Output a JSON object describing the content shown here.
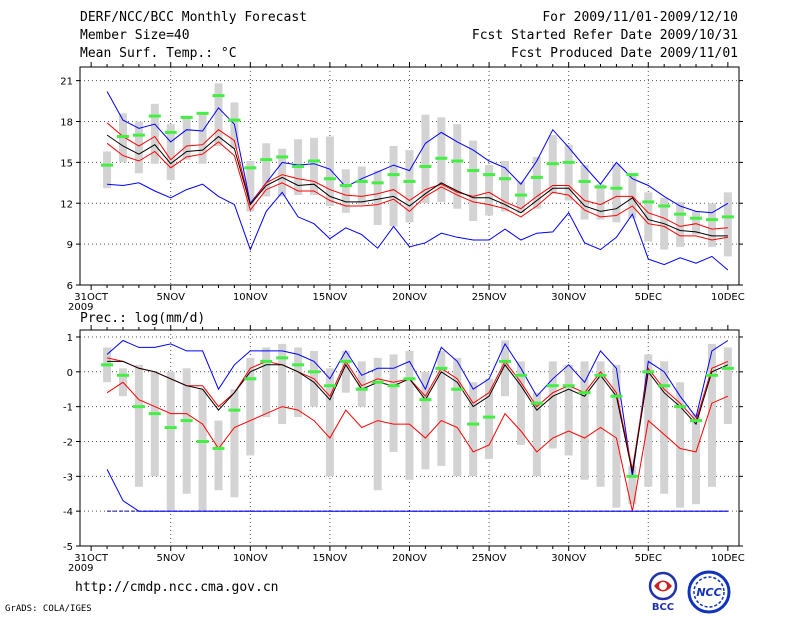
{
  "header": {
    "title": "DERF/NCC/BCC Monthly Forecast",
    "member_size": "Member Size=40",
    "variable": "Mean Surf. Temp.: °C",
    "period": "For 2009/11/01-2009/12/10",
    "started": "Fcst Started Refer Date 2009/10/31",
    "produced": "Fcst Produced Date 2009/11/01"
  },
  "footer": {
    "url": "http://cmdp.ncc.cma.gov.cn",
    "grads": "GrADS: COLA/IGES",
    "bcc_logo_text": "BCC",
    "ncc_logo_text": "NCC"
  },
  "colors": {
    "max": "#0000ff",
    "min": "#0000ff",
    "upper": "#ff0000",
    "lower": "#ff0000",
    "mean": "#000000",
    "box": "#d3d3d3",
    "median": "#44ee44",
    "zero_line": "#0000aa",
    "bcc_logo": "#2233aa",
    "ncc_logo": "#1133bb"
  },
  "chart_data": [
    {
      "type": "line",
      "title": "Mean Surf. Temp.: °C",
      "x_tick_labels": [
        "31OCT",
        "5NOV",
        "10NOV",
        "15NOV",
        "20NOV",
        "25NOV",
        "30NOV",
        "5DEC",
        "10DEC"
      ],
      "x_tick_days": [
        0,
        5,
        10,
        15,
        20,
        25,
        30,
        35,
        40
      ],
      "x_year_label": "2009",
      "xlim": [
        -0.7,
        40.7
      ],
      "ylim": [
        6,
        22
      ],
      "y_ticks": [
        6,
        9,
        12,
        15,
        18,
        21
      ],
      "days": [
        1,
        2,
        3,
        4,
        5,
        6,
        7,
        8,
        9,
        10,
        11,
        12,
        13,
        14,
        15,
        16,
        17,
        18,
        19,
        20,
        21,
        22,
        23,
        24,
        25,
        26,
        27,
        28,
        29,
        30,
        31,
        32,
        33,
        34,
        35,
        36,
        37,
        38,
        39,
        40
      ],
      "series": [
        {
          "name": "max",
          "values": [
            20.2,
            18.1,
            17.5,
            17.8,
            16.5,
            17.4,
            17.3,
            19.0,
            17.8,
            12.0,
            13.5,
            15.0,
            14.8,
            14.9,
            14.5,
            13.2,
            13.8,
            14.3,
            14.8,
            14.4,
            16.4,
            17.2,
            16.5,
            15.9,
            15.1,
            14.6,
            13.4,
            15.1,
            17.4,
            16.1,
            14.7,
            13.4,
            15.0,
            13.8,
            13.3,
            12.5,
            11.8,
            11.4,
            11.3,
            12.0
          ]
        },
        {
          "name": "upper",
          "values": [
            17.9,
            16.9,
            16.2,
            16.9,
            15.2,
            16.2,
            16.3,
            17.4,
            16.6,
            11.9,
            13.5,
            14.1,
            13.8,
            13.6,
            13.0,
            12.6,
            12.5,
            12.7,
            13.0,
            12.2,
            13.0,
            13.4,
            12.8,
            12.5,
            12.8,
            12.1,
            11.6,
            12.5,
            13.3,
            13.3,
            12.2,
            11.9,
            12.5,
            12.5,
            11.3,
            10.9,
            10.3,
            10.5,
            10.1,
            10.2
          ]
        },
        {
          "name": "mean",
          "values": [
            17.0,
            16.2,
            15.6,
            16.3,
            14.9,
            15.8,
            15.9,
            16.9,
            16.0,
            11.9,
            13.3,
            13.9,
            13.3,
            13.4,
            12.5,
            12.1,
            12.1,
            12.3,
            12.5,
            11.8,
            12.7,
            13.5,
            12.9,
            12.4,
            12.4,
            11.9,
            11.3,
            12.2,
            13.1,
            13.1,
            11.8,
            11.4,
            11.6,
            12.4,
            10.8,
            10.5,
            10.0,
            9.9,
            9.6,
            9.6
          ]
        },
        {
          "name": "lower",
          "values": [
            16.4,
            15.5,
            15.1,
            15.8,
            14.6,
            15.4,
            15.6,
            16.5,
            15.5,
            11.5,
            13.0,
            13.5,
            12.9,
            12.9,
            12.2,
            11.8,
            11.8,
            11.9,
            12.3,
            11.4,
            12.5,
            13.2,
            12.6,
            12.1,
            11.9,
            11.6,
            11.0,
            11.8,
            12.8,
            12.6,
            11.5,
            11.0,
            11.1,
            11.8,
            10.5,
            10.3,
            9.6,
            9.6,
            9.3,
            9.5
          ]
        },
        {
          "name": "min",
          "values": [
            13.4,
            13.3,
            13.5,
            12.9,
            12.4,
            13.0,
            13.4,
            12.5,
            11.9,
            8.6,
            11.4,
            12.8,
            11.0,
            10.5,
            9.4,
            10.2,
            9.7,
            8.7,
            10.3,
            8.8,
            9.1,
            9.8,
            9.5,
            9.3,
            9.3,
            10.1,
            9.3,
            9.8,
            9.9,
            11.3,
            9.1,
            8.6,
            9.5,
            11.2,
            7.9,
            7.5,
            8.0,
            7.6,
            8.1,
            7.1
          ]
        }
      ],
      "box_series": {
        "q_low": [
          13.1,
          15.0,
          14.2,
          14.9,
          13.7,
          15.2,
          14.9,
          16.2,
          16.0,
          11.4,
          12.5,
          12.5,
          12.6,
          12.6,
          11.8,
          11.3,
          11.9,
          10.4,
          10.3,
          10.6,
          12.0,
          12.1,
          11.6,
          10.7,
          11.1,
          11.4,
          11.3,
          11.6,
          12.7,
          12.2,
          10.8,
          10.8,
          10.6,
          10.9,
          9.2,
          8.6,
          8.8,
          9.7,
          8.8,
          8.1
        ],
        "q_high": [
          15.8,
          18.6,
          18.0,
          19.3,
          17.8,
          18.3,
          18.6,
          20.8,
          19.4,
          15.1,
          16.4,
          16.0,
          16.7,
          16.8,
          16.9,
          14.5,
          14.7,
          14.4,
          16.2,
          15.9,
          18.5,
          18.3,
          17.8,
          16.6,
          14.8,
          15.1,
          13.6,
          15.4,
          17.0,
          16.3,
          14.8,
          13.4,
          14.9,
          14.1,
          12.8,
          12.4,
          12.1,
          11.4,
          12.0,
          12.8
        ],
        "median": [
          14.8,
          16.9,
          17.0,
          18.4,
          17.2,
          18.3,
          18.6,
          19.9,
          18.1,
          14.6,
          15.2,
          15.4,
          14.7,
          15.1,
          13.8,
          13.3,
          13.6,
          13.5,
          14.1,
          13.6,
          14.7,
          15.3,
          15.1,
          14.4,
          14.1,
          13.8,
          12.6,
          13.9,
          14.9,
          15.0,
          13.6,
          13.2,
          13.1,
          14.1,
          12.1,
          11.8,
          11.2,
          10.9,
          10.8,
          11.0
        ]
      }
    },
    {
      "type": "line",
      "title": "Prec.: log(mm/d)",
      "x_tick_labels": [
        "31OCT",
        "5NOV",
        "10NOV",
        "15NOV",
        "20NOV",
        "25NOV",
        "30NOV",
        "5DEC",
        "10DEC"
      ],
      "x_tick_days": [
        0,
        5,
        10,
        15,
        20,
        25,
        30,
        35,
        40
      ],
      "x_year_label": "2009",
      "xlim": [
        -0.7,
        40.7
      ],
      "ylim": [
        -5,
        1.2
      ],
      "y_ticks": [
        -5,
        -4,
        -3,
        -2,
        -1,
        0,
        1
      ],
      "zero_line": -4,
      "days": [
        1,
        2,
        3,
        4,
        5,
        6,
        7,
        8,
        9,
        10,
        11,
        12,
        13,
        14,
        15,
        16,
        17,
        18,
        19,
        20,
        21,
        22,
        23,
        24,
        25,
        26,
        27,
        28,
        29,
        30,
        31,
        32,
        33,
        34,
        35,
        36,
        37,
        38,
        39,
        40
      ],
      "series": [
        {
          "name": "max",
          "values": [
            0.5,
            0.9,
            0.7,
            0.7,
            0.8,
            0.6,
            0.6,
            -0.5,
            0.2,
            0.6,
            0.6,
            0.6,
            0.5,
            0.3,
            -0.2,
            0.6,
            -0.1,
            0.1,
            0.1,
            0.3,
            -0.5,
            0.7,
            0.3,
            -0.5,
            -0.2,
            0.8,
            0.1,
            -0.7,
            -0.2,
            0.2,
            -0.3,
            0.6,
            0.1,
            -3.0,
            0.3,
            0.0,
            -0.7,
            -1.3,
            0.6,
            0.9
          ]
        },
        {
          "name": "upper",
          "values": [
            0.4,
            0.3,
            0.1,
            0.0,
            -0.2,
            -0.4,
            -0.4,
            -1.0,
            -0.6,
            0.1,
            0.3,
            0.2,
            0.0,
            -0.2,
            -0.7,
            0.3,
            -0.4,
            -0.2,
            -0.3,
            -0.2,
            -0.7,
            0.1,
            -0.2,
            -0.9,
            -0.6,
            0.3,
            -0.3,
            -1.0,
            -0.6,
            -0.4,
            -0.6,
            0.0,
            -0.6,
            -2.8,
            0.1,
            -0.5,
            -0.9,
            -1.4,
            0.1,
            0.3
          ]
        },
        {
          "name": "mean",
          "values": [
            0.3,
            0.3,
            0.1,
            0.0,
            -0.2,
            -0.4,
            -0.5,
            -1.1,
            -0.6,
            0.0,
            0.2,
            0.2,
            0.0,
            -0.3,
            -0.8,
            0.2,
            -0.5,
            -0.3,
            -0.4,
            -0.2,
            -0.8,
            0.0,
            -0.3,
            -1.0,
            -0.7,
            0.2,
            -0.4,
            -1.1,
            -0.7,
            -0.5,
            -0.7,
            -0.1,
            -0.7,
            -2.9,
            0.0,
            -0.6,
            -1.0,
            -1.5,
            0.0,
            0.2
          ]
        },
        {
          "name": "lower",
          "values": [
            -0.6,
            -0.3,
            -0.8,
            -1.0,
            -1.2,
            -1.2,
            -1.5,
            -2.2,
            -1.6,
            -1.4,
            -1.2,
            -1.0,
            -1.1,
            -1.4,
            -1.9,
            -1.1,
            -1.6,
            -1.4,
            -1.5,
            -1.5,
            -1.9,
            -1.4,
            -1.6,
            -2.3,
            -2.1,
            -1.2,
            -1.7,
            -2.3,
            -1.9,
            -1.7,
            -1.9,
            -1.6,
            -1.9,
            -4.0,
            -1.4,
            -1.8,
            -2.2,
            -2.3,
            -0.9,
            -0.7
          ]
        },
        {
          "name": "min",
          "values": [
            -2.8,
            -3.7,
            -4.0,
            -4.0,
            -4.0,
            -4.0,
            -4.0,
            -4.0,
            -4.0,
            -4.0,
            -4.0,
            -4.0,
            -4.0,
            -4.0,
            -4.0,
            -4.0,
            -4.0,
            -4.0,
            -4.0,
            -4.0,
            -4.0,
            -4.0,
            -4.0,
            -4.0,
            -4.0,
            -4.0,
            -4.0,
            -4.0,
            -4.0,
            -4.0,
            -4.0,
            -4.0,
            -4.0,
            -4.0,
            -4.0,
            -4.0,
            -4.0,
            -4.0,
            -4.0,
            -4.0
          ]
        }
      ],
      "box_series": {
        "q_low": [
          -0.3,
          -0.7,
          -3.3,
          -3.0,
          -4.0,
          -3.5,
          -4.0,
          -3.4,
          -3.6,
          -2.4,
          -1.3,
          -1.5,
          -1.3,
          -1.0,
          -3.0,
          -0.6,
          -1.0,
          -3.4,
          -2.3,
          -3.1,
          -2.8,
          -2.7,
          -3.0,
          -3.0,
          -2.5,
          -0.7,
          -2.1,
          -3.0,
          -2.2,
          -2.4,
          -3.1,
          -3.3,
          -3.9,
          -3.8,
          -3.3,
          -3.5,
          -3.9,
          -3.8,
          -3.3,
          -1.5
        ],
        "q_high": [
          0.7,
          0.1,
          0.2,
          0.0,
          0.0,
          0.1,
          -0.5,
          -1.4,
          -0.5,
          0.4,
          0.7,
          0.8,
          0.7,
          0.6,
          0.1,
          0.6,
          0.3,
          0.4,
          0.5,
          0.6,
          0.0,
          0.6,
          0.4,
          -0.3,
          -0.2,
          0.9,
          0.3,
          -0.6,
          0.3,
          0.2,
          0.3,
          0.3,
          0.2,
          -2.7,
          0.5,
          0.3,
          -0.3,
          -1.2,
          0.8,
          0.7
        ],
        "median": [
          0.2,
          -0.1,
          -1.0,
          -1.2,
          -1.6,
          -1.4,
          -2.0,
          -2.2,
          -1.1,
          -0.2,
          0.3,
          0.4,
          0.2,
          0.0,
          -0.4,
          0.3,
          -0.5,
          -0.3,
          -0.4,
          -0.2,
          -0.8,
          0.1,
          -0.5,
          -1.5,
          -1.3,
          0.3,
          -0.1,
          -0.9,
          -0.4,
          -0.4,
          -0.6,
          -0.1,
          -0.7,
          -3.0,
          0.0,
          -0.4,
          -1.0,
          -1.4,
          -0.1,
          0.1
        ]
      }
    }
  ]
}
